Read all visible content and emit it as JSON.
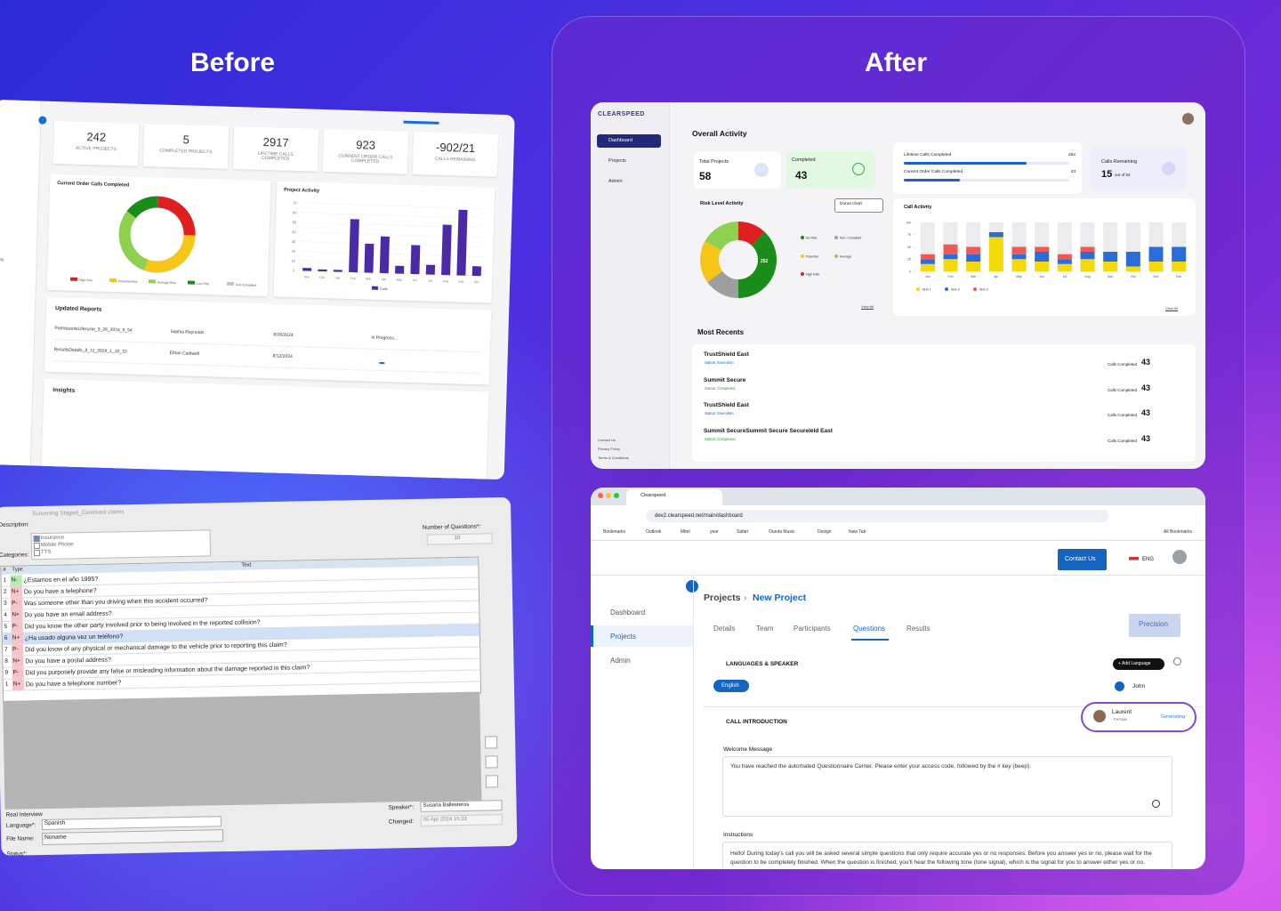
{
  "before": {
    "title": "Before",
    "dashboard": {
      "sidebar": [
        "s",
        "cs",
        "rts",
        "nts",
        "rts",
        "ments"
      ],
      "stats": [
        {
          "value": "242",
          "label": "ACTIVE PROJECTS"
        },
        {
          "value": "5",
          "label": "COMPLETED PROJECTS"
        },
        {
          "value": "2917",
          "label": "LIFETIME CALLS COMPLETED"
        },
        {
          "value": "923",
          "label": "CURRENT ORDER CALLS COMPLETED"
        },
        {
          "value": "-902/21",
          "label": "CALLS REMAINING"
        }
      ],
      "donut_chart": {
        "type": "pie",
        "title": "Current Order Calls Completed",
        "segments": [
          {
            "name": "High Risk",
            "color": "#e02020",
            "value": 25
          },
          {
            "name": "Potential Risk",
            "color": "#f5c518",
            "value": 30
          },
          {
            "name": "Average Risk",
            "color": "#8fd14f",
            "value": 30
          },
          {
            "name": "Low Risk",
            "color": "#1a8c1a",
            "value": 15
          },
          {
            "name": "Non-Compliant",
            "color": "#c4c4c4",
            "value": 0
          }
        ]
      },
      "bar_chart": {
        "type": "bar",
        "title": "Project Activity",
        "categories": [
          "Nov",
          "Dec",
          "Jan",
          "Feb",
          "Mar",
          "Apr",
          "May",
          "Jun",
          "Jul",
          "Aug",
          "Sep",
          "Oct"
        ],
        "series": [
          {
            "name": "Calls",
            "color": "#4b2aa8",
            "values": [
              3,
              2,
              2,
              55,
              30,
              38,
              8,
              30,
              10,
              52,
              68,
              10
            ]
          }
        ],
        "ylim": [
          0,
          70
        ],
        "yticks": [
          0,
          10,
          20,
          30,
          40,
          50,
          60,
          70
        ]
      },
      "reports": {
        "title": "Updated Reports",
        "rows": [
          [
            "ParticipantsLifecycle_8_26_2024_9_54",
            "Sophia Reynolds",
            "8/26/2024",
            "In Progress..."
          ],
          [
            "ResultsDetails_8_12_2024_1_10_10",
            "Ethan Caldwell",
            "8/12/2024"
          ]
        ]
      },
      "insights": "Insights"
    },
    "legacy": {
      "title": "Screening Staged_Contrived claims",
      "description_label": "Description:",
      "categories_label": "Categories:",
      "categories": [
        "Insurance",
        "Mobile Phone",
        "TTS"
      ],
      "questions_label": "Number of Questions*:",
      "questions": "10",
      "columns": [
        "#",
        "Type",
        "Text"
      ],
      "rows": [
        [
          "1",
          "N-",
          "¿Estamos en el año 1995?"
        ],
        [
          "2",
          "N+",
          "Do you have a telephone?"
        ],
        [
          "3",
          "P-",
          "Was someone other than you driving when this accident occurred?"
        ],
        [
          "4",
          "N+",
          "Do you have an email address?"
        ],
        [
          "5",
          "P-",
          "Did you know the other party involved prior to being involved in the reported collision?"
        ],
        [
          "6",
          "N+",
          "¿Ha usado alguna vez un teléfono?"
        ],
        [
          "7",
          "P-",
          "Did you know of any physical or mechanical damage to the vehicle prior to reporting this claim?"
        ],
        [
          "8",
          "N+",
          "Do you have a postal address?"
        ],
        [
          "9",
          "P-",
          "Did you purposely provide any false or misleading information about the damage reported in this claim?"
        ],
        [
          "1",
          "N+",
          "Do you have a telephone number?"
        ]
      ],
      "interview": "Real Interview",
      "language_label": "Language*:",
      "language": "Spanish",
      "file_label": "File Name:",
      "file": "Noname",
      "status_label": "Status*:",
      "speaker_label": "Speaker*:",
      "speaker": "Susana Ballesteros",
      "changed_label": "Changed:",
      "changed": "05 Apr 2024 15:23"
    }
  },
  "after": {
    "title": "After",
    "dashboard": {
      "logo": "CLEARSPEED",
      "nav": [
        "Dashboard",
        "Projects",
        "Admin"
      ],
      "footer": [
        "Contact Us",
        "Privacy Policy",
        "Terms & Conditions"
      ],
      "heading": "Overall Activity",
      "total": {
        "label": "Total Projects",
        "value": "58"
      },
      "completed": {
        "label": "Completed",
        "value": "43"
      },
      "progress": [
        {
          "label": "Lifetime Calls Completed",
          "value": "252"
        },
        {
          "label": "Current Order Calls Completed",
          "value": "43"
        }
      ],
      "remaining": {
        "label": "Calls Remaining",
        "value": "15",
        "suffix": "out of 54"
      },
      "risk_chart": {
        "type": "pie",
        "title": "Risk Level Activity",
        "control": "Donut chart",
        "label": "252",
        "link": "View All",
        "segments": [
          {
            "name": "High Risk",
            "color": "#e02020",
            "value": 12
          },
          {
            "name": "No Risk",
            "color": "#1a8c1a",
            "value": 38
          },
          {
            "name": "Non- Compliant",
            "color": "#9e9e9e",
            "value": 15
          },
          {
            "name": "Potential",
            "color": "#f5c518",
            "value": 18
          },
          {
            "name": "Average",
            "color": "#8fd14f",
            "value": 17
          }
        ]
      },
      "call_chart": {
        "type": "stacked_bar",
        "title": "Call Activity",
        "link": "View All",
        "categories": [
          "Jan",
          "Feb",
          "Mar",
          "Apr",
          "May",
          "Jun",
          "Jul",
          "Aug",
          "Sep",
          "Oct",
          "Nov",
          "Dec"
        ],
        "series": [
          {
            "name": "Item 1",
            "color": "#f5d90a",
            "values": [
              15,
              25,
              20,
              70,
              25,
              20,
              15,
              25,
              20,
              10,
              20,
              20
            ]
          },
          {
            "name": "Item 2",
            "color": "#2a6dd9",
            "values": [
              10,
              10,
              15,
              10,
              10,
              20,
              10,
              15,
              20,
              30,
              30,
              30
            ]
          },
          {
            "name": "Item 3",
            "color": "#ee5a52",
            "values": [
              10,
              20,
              15,
              0,
              15,
              10,
              10,
              10,
              0,
              0,
              0,
              0
            ]
          }
        ],
        "ylim": [
          0,
          100
        ],
        "yticks": [
          0,
          25,
          50,
          75,
          100
        ]
      },
      "recents_title": "Most Recents",
      "recents": [
        {
          "name": "TrustShield East",
          "status": "Status: Execution",
          "metric": "Calls Completed",
          "value": "43"
        },
        {
          "name": "Summit Secure",
          "status": "Status: Completed",
          "metric": "Calls Completed",
          "value": "43"
        },
        {
          "name": "TrustShield East",
          "status": "Status: Execution",
          "metric": "Calls Completed",
          "value": "43"
        },
        {
          "name": "Summit SecureSummit Secure Secureleld East",
          "status": "Status: Completed",
          "metric": "Calls Completed",
          "value": "43"
        }
      ]
    },
    "projects": {
      "tab": "Clearspeed",
      "url": "dev2.clearspeed.net/main/dashboard",
      "bookmarks": [
        "Bookmarks",
        "Outlook",
        "Mitel",
        "year",
        "Safari",
        "Ounda Music",
        "Design",
        "New Tab"
      ],
      "all_bookmarks": "All Bookmarks",
      "contact": "Contact Us",
      "lang": "ENG",
      "nav": [
        "Dashboard",
        "Projects",
        "Admin"
      ],
      "breadcrumb": [
        "Projects",
        "New Project"
      ],
      "tabs": [
        "Details",
        "Team",
        "Participants",
        "Questions",
        "Results"
      ],
      "precision": "Precision",
      "languages": {
        "title": "LANGUAGES & SPEAKER",
        "add": "+ Add Language",
        "language": "English",
        "speaker": "John"
      },
      "intro": {
        "title": "CALL INTRODUCTION",
        "voice": "Laurent",
        "gender": "Female",
        "status": "Generating"
      },
      "welcome": {
        "label": "Welcome Message",
        "text": "You have reached the automated Questionnaire Center. Please enter your access code, followed by the # key (beep)."
      },
      "instructions": {
        "label": "Instructions",
        "text": "Hello! During today's call you will be asked several simple questions that only require accurate yes or no responses. Before you answer yes or no, please wait for the question to be completely finished. When the question is finished, you'll hear the following tone (tone signal), which is the signal for you to answer either yes or no."
      }
    }
  }
}
